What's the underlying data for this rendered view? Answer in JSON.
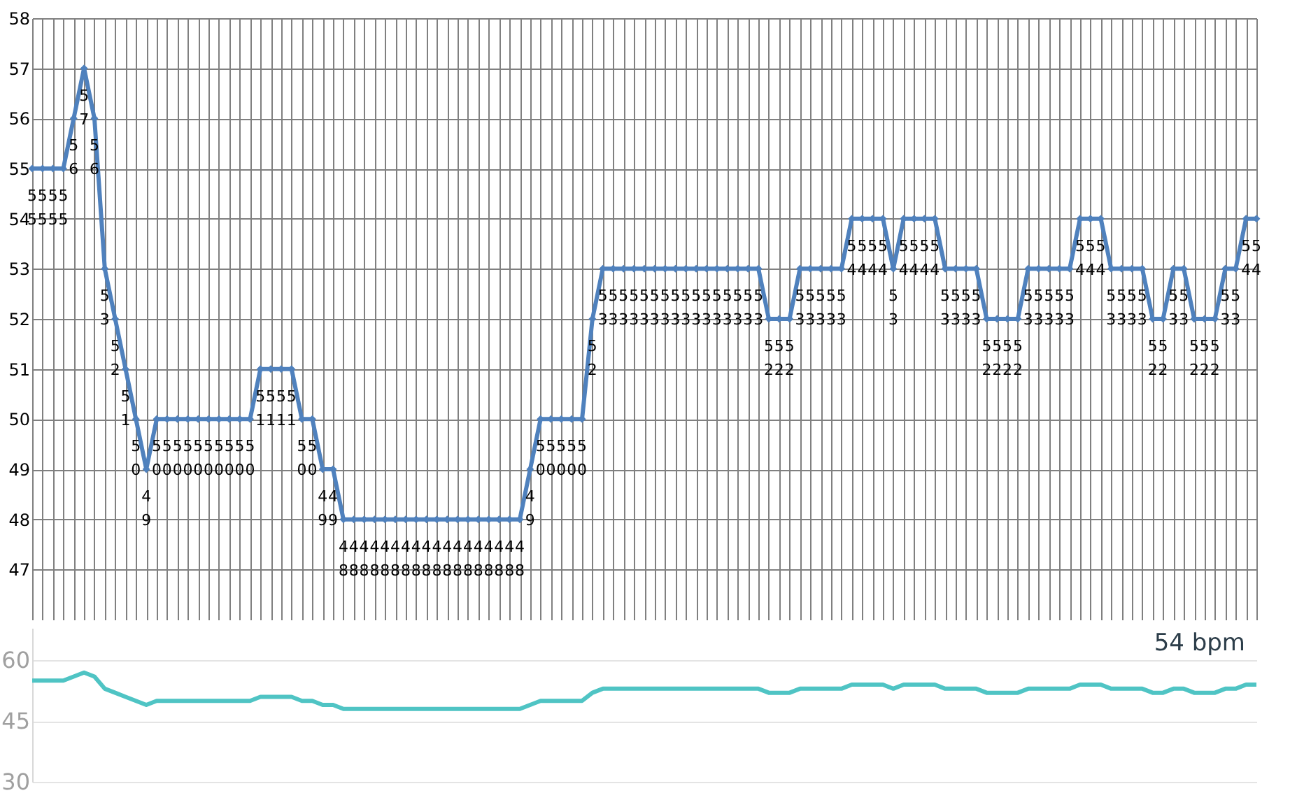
{
  "chart_data": [
    {
      "type": "line",
      "categories": [
        null,
        null,
        null,
        null,
        null,
        null,
        null,
        null,
        null,
        null,
        null,
        null,
        null,
        null,
        null,
        null,
        null,
        null,
        null,
        null,
        null,
        null,
        null,
        null,
        null,
        null,
        null,
        null,
        null,
        null,
        null,
        null,
        null,
        null,
        null,
        null,
        null,
        null,
        null,
        null,
        null,
        null,
        null,
        null,
        null,
        null,
        null,
        null,
        null,
        null,
        null,
        null,
        null,
        null,
        null,
        null,
        null,
        null,
        null,
        null,
        null,
        null,
        null,
        null,
        null,
        null,
        null,
        null,
        null,
        null,
        null,
        null,
        null,
        null,
        null,
        null,
        null,
        null,
        null,
        null,
        null,
        null,
        null,
        null,
        null,
        null,
        null,
        null,
        null,
        null,
        null,
        null,
        null,
        null,
        null,
        null,
        null,
        null,
        null,
        null,
        null,
        null,
        null,
        null,
        null,
        null,
        null,
        null,
        null,
        null,
        null,
        null,
        null,
        null,
        null,
        null,
        null,
        null,
        null
      ],
      "series": [
        {
          "color": "#4f81bd",
          "values": [
            55,
            55,
            55,
            55,
            56,
            57,
            56,
            53,
            52,
            51,
            50,
            49,
            50,
            50,
            50,
            50,
            50,
            50,
            50,
            50,
            50,
            50,
            51,
            51,
            51,
            51,
            50,
            50,
            49,
            49,
            48,
            48,
            48,
            48,
            48,
            48,
            48,
            48,
            48,
            48,
            48,
            48,
            48,
            48,
            48,
            48,
            48,
            48,
            49,
            50,
            50,
            50,
            50,
            50,
            52,
            53,
            53,
            53,
            53,
            53,
            53,
            53,
            53,
            53,
            53,
            53,
            53,
            53,
            53,
            53,
            53,
            52,
            52,
            52,
            53,
            53,
            53,
            53,
            53,
            54,
            54,
            54,
            54,
            53,
            54,
            54,
            54,
            54,
            53,
            53,
            53,
            53,
            52,
            52,
            52,
            52,
            53,
            53,
            53,
            53,
            53,
            54,
            54,
            54,
            53,
            53,
            53,
            53,
            52,
            52,
            53,
            53,
            52,
            52,
            52,
            53,
            53,
            54,
            54
          ]
        }
      ],
      "ylim": [
        46,
        58
      ],
      "yticks": [
        47,
        48,
        49,
        50,
        51,
        52,
        53,
        54,
        55,
        56,
        57,
        58
      ],
      "grid": true,
      "marker": "diamond",
      "data_labels": true,
      "tick_labels": "y"
    },
    {
      "type": "line",
      "categories": [
        null,
        null,
        null,
        null,
        null,
        null,
        null,
        null,
        null,
        null,
        null,
        null,
        null,
        null,
        null,
        null,
        null,
        null,
        null,
        null,
        null,
        null,
        null,
        null,
        null,
        null,
        null,
        null,
        null,
        null,
        null,
        null,
        null,
        null,
        null,
        null,
        null,
        null,
        null,
        null,
        null,
        null,
        null,
        null,
        null,
        null,
        null,
        null,
        null,
        null,
        null,
        null,
        null,
        null,
        null,
        null,
        null,
        null,
        null,
        null,
        null,
        null,
        null,
        null,
        null,
        null,
        null,
        null,
        null,
        null,
        null,
        null,
        null,
        null,
        null,
        null,
        null,
        null,
        null,
        null,
        null,
        null,
        null,
        null,
        null,
        null,
        null,
        null,
        null,
        null,
        null,
        null,
        null,
        null,
        null,
        null,
        null,
        null,
        null,
        null,
        null,
        null,
        null,
        null,
        null,
        null,
        null,
        null,
        null,
        null,
        null,
        null,
        null,
        null,
        null,
        null,
        null,
        null,
        null
      ],
      "series": [
        {
          "color": "#4fc4c4",
          "values": [
            55,
            55,
            55,
            55,
            56,
            57,
            56,
            53,
            52,
            51,
            50,
            49,
            50,
            50,
            50,
            50,
            50,
            50,
            50,
            50,
            50,
            50,
            51,
            51,
            51,
            51,
            50,
            50,
            49,
            49,
            48,
            48,
            48,
            48,
            48,
            48,
            48,
            48,
            48,
            48,
            48,
            48,
            48,
            48,
            48,
            48,
            48,
            48,
            49,
            50,
            50,
            50,
            50,
            50,
            52,
            53,
            53,
            53,
            53,
            53,
            53,
            53,
            53,
            53,
            53,
            53,
            53,
            53,
            53,
            53,
            53,
            52,
            52,
            52,
            53,
            53,
            53,
            53,
            53,
            54,
            54,
            54,
            54,
            53,
            54,
            54,
            54,
            54,
            53,
            53,
            53,
            53,
            52,
            52,
            52,
            52,
            53,
            53,
            53,
            53,
            53,
            54,
            54,
            54,
            53,
            53,
            53,
            53,
            52,
            52,
            53,
            53,
            52,
            52,
            52,
            53,
            53,
            54,
            54
          ]
        }
      ],
      "ylim": [
        30,
        68
      ],
      "yticks": [
        30,
        45,
        60
      ],
      "grid": "y",
      "tick_labels": "y",
      "annotations": [
        "54 bpm"
      ]
    }
  ]
}
